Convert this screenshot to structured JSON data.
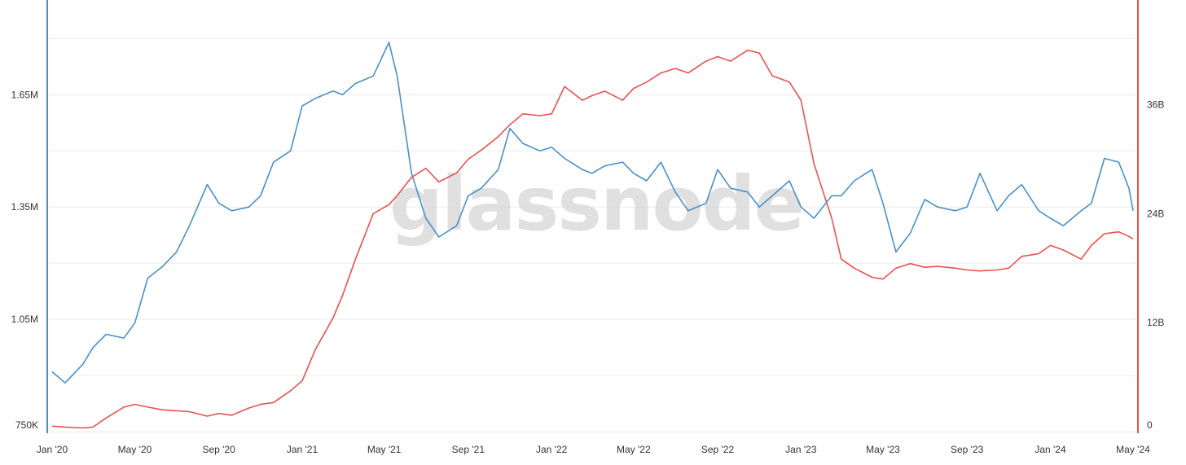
{
  "watermark": "glassnode",
  "chart_data": {
    "type": "line",
    "title": "",
    "xlabel": "",
    "grid": true,
    "x_range": [
      "2020-01-01",
      "2024-05-01"
    ],
    "x_ticks": [
      {
        "date": "2020-01-01",
        "label": "Jan '20"
      },
      {
        "date": "2020-05-01",
        "label": "May '20"
      },
      {
        "date": "2020-09-01",
        "label": "Sep '20"
      },
      {
        "date": "2021-01-01",
        "label": "Jan '21"
      },
      {
        "date": "2021-05-01",
        "label": "May '21"
      },
      {
        "date": "2021-09-01",
        "label": "Sep '21"
      },
      {
        "date": "2022-01-01",
        "label": "Jan '22"
      },
      {
        "date": "2022-05-01",
        "label": "May '22"
      },
      {
        "date": "2022-09-01",
        "label": "Sep '22"
      },
      {
        "date": "2023-01-01",
        "label": "Jan '23"
      },
      {
        "date": "2023-05-01",
        "label": "May '23"
      },
      {
        "date": "2023-09-01",
        "label": "Sep '23"
      },
      {
        "date": "2024-01-01",
        "label": "Jan '24"
      },
      {
        "date": "2024-05-01",
        "label": "May '24"
      }
    ],
    "left_axis": {
      "color": "#4a90c8",
      "range": [
        750000,
        1890000
      ],
      "ticks": [
        {
          "value": 750000,
          "label": "750K"
        },
        {
          "value": 1050000,
          "label": "1.05M"
        },
        {
          "value": 1350000,
          "label": "1.35M"
        },
        {
          "value": 1650000,
          "label": "1.65M"
        }
      ]
    },
    "right_axis": {
      "color": "#e8524f",
      "range": [
        0,
        47000000000
      ],
      "ticks": [
        {
          "value": 0,
          "label": "0"
        },
        {
          "value": 12000000000,
          "label": "12B"
        },
        {
          "value": 24000000000,
          "label": "24B"
        },
        {
          "value": 36000000000,
          "label": "36B"
        }
      ]
    },
    "series": [
      {
        "axis": "left",
        "color": "#4a90c8",
        "points": [
          [
            "2020-01-01",
            910000
          ],
          [
            "2020-01-20",
            880000
          ],
          [
            "2020-02-15",
            930000
          ],
          [
            "2020-03-01",
            975000
          ],
          [
            "2020-03-20",
            1010000
          ],
          [
            "2020-04-15",
            1000000
          ],
          [
            "2020-05-01",
            1040000
          ],
          [
            "2020-05-20",
            1160000
          ],
          [
            "2020-06-10",
            1190000
          ],
          [
            "2020-07-01",
            1230000
          ],
          [
            "2020-07-20",
            1300000
          ],
          [
            "2020-08-15",
            1410000
          ],
          [
            "2020-09-01",
            1360000
          ],
          [
            "2020-09-20",
            1340000
          ],
          [
            "2020-10-15",
            1350000
          ],
          [
            "2020-11-01",
            1380000
          ],
          [
            "2020-11-20",
            1470000
          ],
          [
            "2020-12-15",
            1500000
          ],
          [
            "2021-01-01",
            1620000
          ],
          [
            "2021-01-20",
            1640000
          ],
          [
            "2021-02-15",
            1660000
          ],
          [
            "2021-03-01",
            1650000
          ],
          [
            "2021-03-20",
            1680000
          ],
          [
            "2021-04-15",
            1700000
          ],
          [
            "2021-05-08",
            1790000
          ],
          [
            "2021-05-20",
            1700000
          ],
          [
            "2021-06-10",
            1440000
          ],
          [
            "2021-07-01",
            1320000
          ],
          [
            "2021-07-20",
            1270000
          ],
          [
            "2021-08-15",
            1300000
          ],
          [
            "2021-09-01",
            1380000
          ],
          [
            "2021-09-20",
            1400000
          ],
          [
            "2021-10-15",
            1450000
          ],
          [
            "2021-11-01",
            1560000
          ],
          [
            "2021-11-20",
            1520000
          ],
          [
            "2021-12-15",
            1500000
          ],
          [
            "2022-01-01",
            1510000
          ],
          [
            "2022-01-20",
            1480000
          ],
          [
            "2022-02-15",
            1450000
          ],
          [
            "2022-03-01",
            1440000
          ],
          [
            "2022-03-20",
            1460000
          ],
          [
            "2022-04-15",
            1470000
          ],
          [
            "2022-05-01",
            1440000
          ],
          [
            "2022-05-20",
            1420000
          ],
          [
            "2022-06-10",
            1470000
          ],
          [
            "2022-07-01",
            1390000
          ],
          [
            "2022-07-20",
            1340000
          ],
          [
            "2022-08-15",
            1360000
          ],
          [
            "2022-09-01",
            1450000
          ],
          [
            "2022-09-20",
            1400000
          ],
          [
            "2022-10-15",
            1390000
          ],
          [
            "2022-11-01",
            1350000
          ],
          [
            "2022-11-20",
            1380000
          ],
          [
            "2022-12-15",
            1420000
          ],
          [
            "2023-01-01",
            1350000
          ],
          [
            "2023-01-20",
            1320000
          ],
          [
            "2023-02-15",
            1380000
          ],
          [
            "2023-03-01",
            1380000
          ],
          [
            "2023-03-20",
            1420000
          ],
          [
            "2023-04-15",
            1450000
          ],
          [
            "2023-05-01",
            1360000
          ],
          [
            "2023-05-20",
            1230000
          ],
          [
            "2023-06-10",
            1280000
          ],
          [
            "2023-07-01",
            1370000
          ],
          [
            "2023-07-20",
            1350000
          ],
          [
            "2023-08-15",
            1340000
          ],
          [
            "2023-09-01",
            1350000
          ],
          [
            "2023-09-20",
            1440000
          ],
          [
            "2023-10-15",
            1340000
          ],
          [
            "2023-11-01",
            1380000
          ],
          [
            "2023-11-20",
            1410000
          ],
          [
            "2023-12-15",
            1340000
          ],
          [
            "2024-01-01",
            1320000
          ],
          [
            "2024-01-20",
            1300000
          ],
          [
            "2024-02-15",
            1340000
          ],
          [
            "2024-03-01",
            1360000
          ],
          [
            "2024-03-20",
            1480000
          ],
          [
            "2024-04-10",
            1470000
          ],
          [
            "2024-04-25",
            1400000
          ],
          [
            "2024-05-01",
            1340000
          ]
        ]
      },
      {
        "axis": "right",
        "color": "#e8524f",
        "points": [
          [
            "2020-01-01",
            600000000
          ],
          [
            "2020-01-20",
            500000000
          ],
          [
            "2020-02-15",
            400000000
          ],
          [
            "2020-03-01",
            500000000
          ],
          [
            "2020-03-20",
            1500000000
          ],
          [
            "2020-04-15",
            2700000000
          ],
          [
            "2020-05-01",
            3000000000
          ],
          [
            "2020-05-20",
            2700000000
          ],
          [
            "2020-06-10",
            2400000000
          ],
          [
            "2020-07-01",
            2300000000
          ],
          [
            "2020-07-20",
            2200000000
          ],
          [
            "2020-08-15",
            1700000000
          ],
          [
            "2020-09-01",
            2000000000
          ],
          [
            "2020-09-20",
            1800000000
          ],
          [
            "2020-10-15",
            2600000000
          ],
          [
            "2020-11-01",
            3000000000
          ],
          [
            "2020-11-20",
            3200000000
          ],
          [
            "2020-12-15",
            4500000000
          ],
          [
            "2021-01-01",
            5600000000
          ],
          [
            "2021-01-20",
            9000000000
          ],
          [
            "2021-02-15",
            12500000000
          ],
          [
            "2021-03-01",
            15000000000
          ],
          [
            "2021-03-20",
            19000000000
          ],
          [
            "2021-04-15",
            24000000000
          ],
          [
            "2021-05-08",
            25000000000
          ],
          [
            "2021-05-20",
            26000000000
          ],
          [
            "2021-06-10",
            28000000000
          ],
          [
            "2021-07-01",
            29000000000
          ],
          [
            "2021-07-20",
            27500000000
          ],
          [
            "2021-08-15",
            28500000000
          ],
          [
            "2021-09-01",
            30000000000
          ],
          [
            "2021-09-20",
            31000000000
          ],
          [
            "2021-10-15",
            32500000000
          ],
          [
            "2021-11-01",
            33800000000
          ],
          [
            "2021-11-20",
            35000000000
          ],
          [
            "2021-12-15",
            34800000000
          ],
          [
            "2022-01-01",
            35000000000
          ],
          [
            "2022-01-20",
            38000000000
          ],
          [
            "2022-02-15",
            36500000000
          ],
          [
            "2022-03-01",
            37000000000
          ],
          [
            "2022-03-20",
            37500000000
          ],
          [
            "2022-04-15",
            36500000000
          ],
          [
            "2022-05-01",
            37800000000
          ],
          [
            "2022-05-20",
            38500000000
          ],
          [
            "2022-06-10",
            39500000000
          ],
          [
            "2022-07-01",
            40000000000
          ],
          [
            "2022-07-20",
            39500000000
          ],
          [
            "2022-08-15",
            40800000000
          ],
          [
            "2022-09-01",
            41300000000
          ],
          [
            "2022-09-20",
            40800000000
          ],
          [
            "2022-10-15",
            42000000000
          ],
          [
            "2022-11-01",
            41700000000
          ],
          [
            "2022-11-20",
            39200000000
          ],
          [
            "2022-12-15",
            38500000000
          ],
          [
            "2023-01-01",
            36500000000
          ],
          [
            "2023-01-20",
            29500000000
          ],
          [
            "2023-02-15",
            23500000000
          ],
          [
            "2023-03-01",
            19000000000
          ],
          [
            "2023-03-20",
            18000000000
          ],
          [
            "2023-04-15",
            17000000000
          ],
          [
            "2023-05-01",
            16800000000
          ],
          [
            "2023-05-20",
            18000000000
          ],
          [
            "2023-06-10",
            18500000000
          ],
          [
            "2023-07-01",
            18100000000
          ],
          [
            "2023-07-20",
            18200000000
          ],
          [
            "2023-08-15",
            18000000000
          ],
          [
            "2023-09-01",
            17800000000
          ],
          [
            "2023-09-20",
            17700000000
          ],
          [
            "2023-10-15",
            17800000000
          ],
          [
            "2023-11-01",
            18000000000
          ],
          [
            "2023-11-20",
            19300000000
          ],
          [
            "2023-12-15",
            19600000000
          ],
          [
            "2024-01-01",
            20500000000
          ],
          [
            "2024-01-20",
            20000000000
          ],
          [
            "2024-02-15",
            19000000000
          ],
          [
            "2024-03-01",
            20500000000
          ],
          [
            "2024-03-20",
            21800000000
          ],
          [
            "2024-04-10",
            22000000000
          ],
          [
            "2024-04-25",
            21500000000
          ],
          [
            "2024-05-01",
            21200000000
          ]
        ]
      }
    ]
  }
}
